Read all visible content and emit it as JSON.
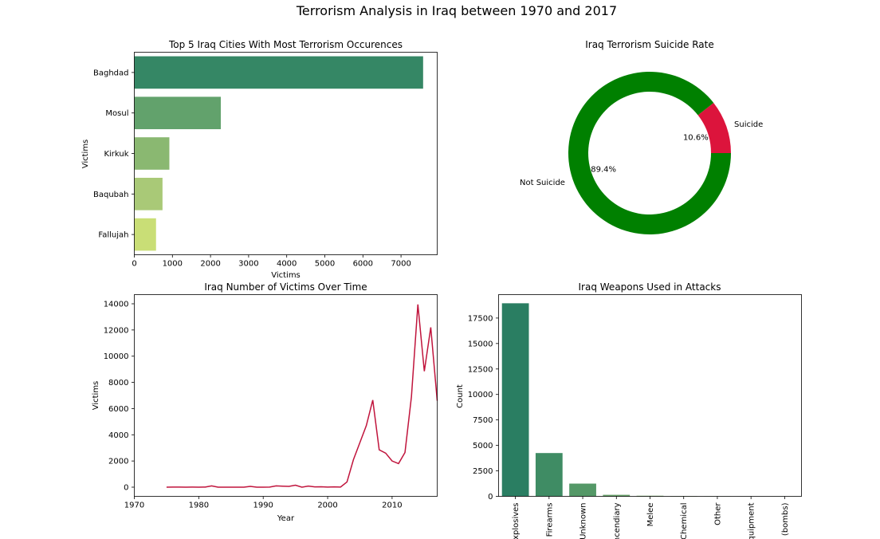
{
  "title": "Terrorism Analysis in Iraq between 1970 and 2017",
  "chart_data": [
    {
      "type": "bar",
      "orientation": "horizontal",
      "title": "Top 5 Iraq Cities With Most Terrorism Occurences",
      "xlabel": "Victims",
      "ylabel": "Victims",
      "categories": [
        "Baghdad",
        "Mosul",
        "Kirkuk",
        "Baqubah",
        "Fallujah"
      ],
      "values": [
        7580,
        2270,
        920,
        740,
        570
      ],
      "xlim": [
        0,
        7950
      ],
      "xticks": [
        0,
        1000,
        2000,
        3000,
        4000,
        5000,
        6000,
        7000
      ],
      "colors": [
        "#358765",
        "#62a26c",
        "#8ab871",
        "#a9c977",
        "#c9de76"
      ]
    },
    {
      "type": "pie",
      "style": "donut",
      "title": "Iraq Terrorism Suicide Rate",
      "labels": [
        "Suicide",
        "Not Suicide"
      ],
      "values": [
        10.6,
        89.4
      ],
      "pct_labels": [
        "10.6%",
        "89.4%"
      ],
      "colors": [
        "#dc143c",
        "#008000"
      ]
    },
    {
      "type": "line",
      "title": "Iraq Number of Victims Over Time",
      "xlabel": "Year",
      "ylabel": "Victims",
      "xlim": [
        1970,
        2017
      ],
      "ylim": [
        -700,
        14700
      ],
      "xticks": [
        1970,
        1980,
        1990,
        2000,
        2010
      ],
      "yticks": [
        0,
        2000,
        4000,
        6000,
        8000,
        10000,
        12000,
        14000
      ],
      "color": "#c0143c",
      "x": [
        1975,
        1976,
        1977,
        1978,
        1979,
        1980,
        1981,
        1982,
        1983,
        1984,
        1985,
        1986,
        1987,
        1988,
        1989,
        1990,
        1991,
        1992,
        1993,
        1994,
        1995,
        1996,
        1997,
        1998,
        1999,
        2000,
        2001,
        2002,
        2003,
        2004,
        2005,
        2006,
        2007,
        2008,
        2009,
        2010,
        2011,
        2012,
        2013,
        2014,
        2015,
        2016,
        2017
      ],
      "y": [
        0,
        10,
        5,
        0,
        5,
        0,
        10,
        100,
        0,
        0,
        0,
        0,
        0,
        60,
        0,
        0,
        10,
        100,
        80,
        60,
        150,
        0,
        80,
        20,
        30,
        10,
        20,
        10,
        400,
        2100,
        3400,
        4700,
        6650,
        2850,
        2600,
        2000,
        1800,
        2650,
        6900,
        13950,
        8850,
        12200,
        6600
      ]
    },
    {
      "type": "bar",
      "title": "Iraq Weapons Used in Attacks",
      "xlabel": "",
      "ylabel": "Count",
      "categories": [
        "Explosives",
        "Firearms",
        "Unknown",
        "Incendiary",
        "Melee",
        "Chemical",
        "Other",
        "Vehicle (not to include vehicle-borne explosives, i.e., car or truck bombs)",
        "Sabotage Equipment"
      ],
      "category_labels": [
        "Explosives",
        "Firearms",
        "Unknown",
        "Incendiary",
        "Melee",
        "Chemical",
        "Other",
        "Equipment",
        "(bombs)"
      ],
      "values": [
        18950,
        4250,
        1250,
        150,
        60,
        30,
        10,
        5,
        3
      ],
      "ylim": [
        0,
        19800
      ],
      "yticks": [
        0,
        2500,
        5000,
        7500,
        10000,
        12500,
        15000,
        17500
      ],
      "colors": [
        "#2a7e62",
        "#3f8c64",
        "#549867",
        "#67a36a",
        "#7aad6d",
        "#8bb670",
        "#9cbf72",
        "#adc874",
        "#bed176"
      ]
    }
  ]
}
